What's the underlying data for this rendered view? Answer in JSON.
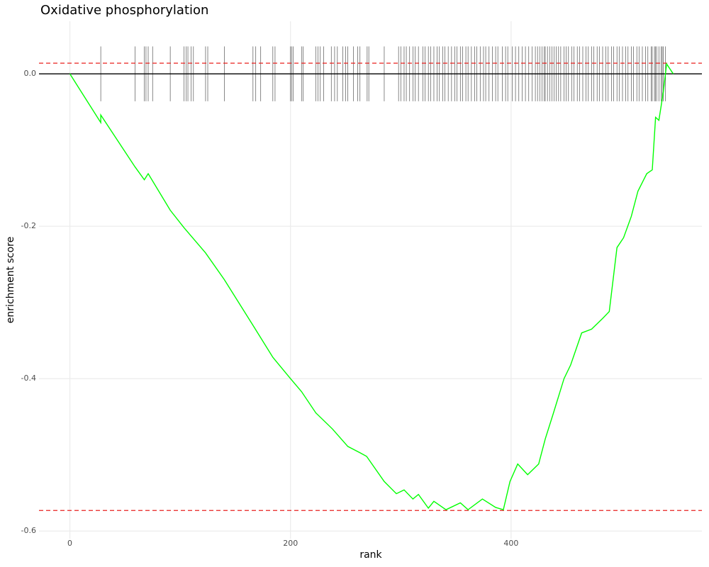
{
  "chart_data": {
    "type": "line",
    "title": "Oxidative phosphorylation",
    "x_label": "rank",
    "y_label": "enrichment score",
    "xlim": [
      -28,
      573
    ],
    "ylim": [
      -0.61,
      0.069
    ],
    "xticks": [
      0,
      200,
      400
    ],
    "yticks": [
      {
        "value": -0.6,
        "label": "-0.6"
      },
      {
        "value": -0.4,
        "label": "-0.4"
      },
      {
        "value": -0.2,
        "label": "-0.2"
      },
      {
        "value": 0,
        "label": "0.0"
      }
    ],
    "grid": true,
    "hline": 0,
    "dashed_lines": [
      0.014,
      -0.573
    ],
    "dashed_color": "#e8211f",
    "hit_range": [
      -0.036,
      0.036
    ],
    "hit_color": "#555555",
    "hits": [
      28,
      59,
      67.5,
      69,
      71,
      75,
      91,
      103.5,
      105.5,
      107,
      110,
      112,
      123,
      125,
      140,
      166,
      168.5,
      173,
      184,
      186,
      200,
      201,
      202.5,
      210,
      211.5,
      223,
      225,
      227,
      230,
      237,
      240,
      242.5,
      247.5,
      250,
      252,
      257,
      261,
      263,
      269.5,
      271,
      285,
      298,
      300,
      303,
      305,
      308,
      311,
      313,
      316,
      320,
      322,
      325,
      327,
      330,
      333,
      335,
      338,
      340,
      343,
      346,
      349,
      351,
      354,
      356,
      359,
      361,
      364,
      367,
      369,
      372,
      375,
      377,
      380,
      383,
      386,
      388,
      392,
      395,
      397,
      401,
      404,
      407,
      410,
      413,
      416,
      419,
      422,
      424,
      426,
      428,
      430,
      431,
      433,
      435,
      437,
      439,
      441,
      443,
      445,
      448,
      450,
      452,
      455,
      457,
      460,
      462,
      465,
      468,
      470,
      473,
      475,
      478,
      480,
      483,
      486,
      488,
      491,
      493,
      496,
      498,
      501,
      504,
      506,
      509,
      511,
      514,
      516,
      519,
      522,
      524,
      527,
      528,
      530,
      531,
      532,
      534,
      536,
      537,
      538,
      540
    ],
    "curve": {
      "color": "#00ff00",
      "x": [
        0,
        28,
        28,
        59,
        67.5,
        71,
        91,
        103.5,
        123,
        140,
        166,
        184,
        200,
        210,
        223,
        238,
        252,
        264,
        269,
        285,
        296,
        303,
        311,
        316,
        325,
        330,
        341,
        354,
        361,
        374,
        386,
        393,
        399,
        406,
        415,
        425,
        431,
        438,
        448,
        454,
        464,
        473,
        483,
        489,
        496,
        502,
        509,
        515,
        523,
        528,
        531,
        534,
        538,
        541,
        547
      ],
      "y": [
        0,
        -0.064,
        -0.054,
        -0.122,
        -0.139,
        -0.131,
        -0.179,
        -0.202,
        -0.235,
        -0.27,
        -0.33,
        -0.372,
        -0.4,
        -0.417,
        -0.445,
        -0.466,
        -0.489,
        -0.498,
        -0.502,
        -0.535,
        -0.551,
        -0.546,
        -0.558,
        -0.552,
        -0.57,
        -0.561,
        -0.572,
        -0.563,
        -0.572,
        -0.558,
        -0.569,
        -0.572,
        -0.535,
        -0.512,
        -0.526,
        -0.512,
        -0.479,
        -0.447,
        -0.4,
        -0.382,
        -0.34,
        -0.335,
        -0.321,
        -0.312,
        -0.228,
        -0.215,
        -0.187,
        -0.154,
        -0.131,
        -0.126,
        -0.057,
        -0.061,
        -0.024,
        0.013,
        0
      ]
    }
  }
}
